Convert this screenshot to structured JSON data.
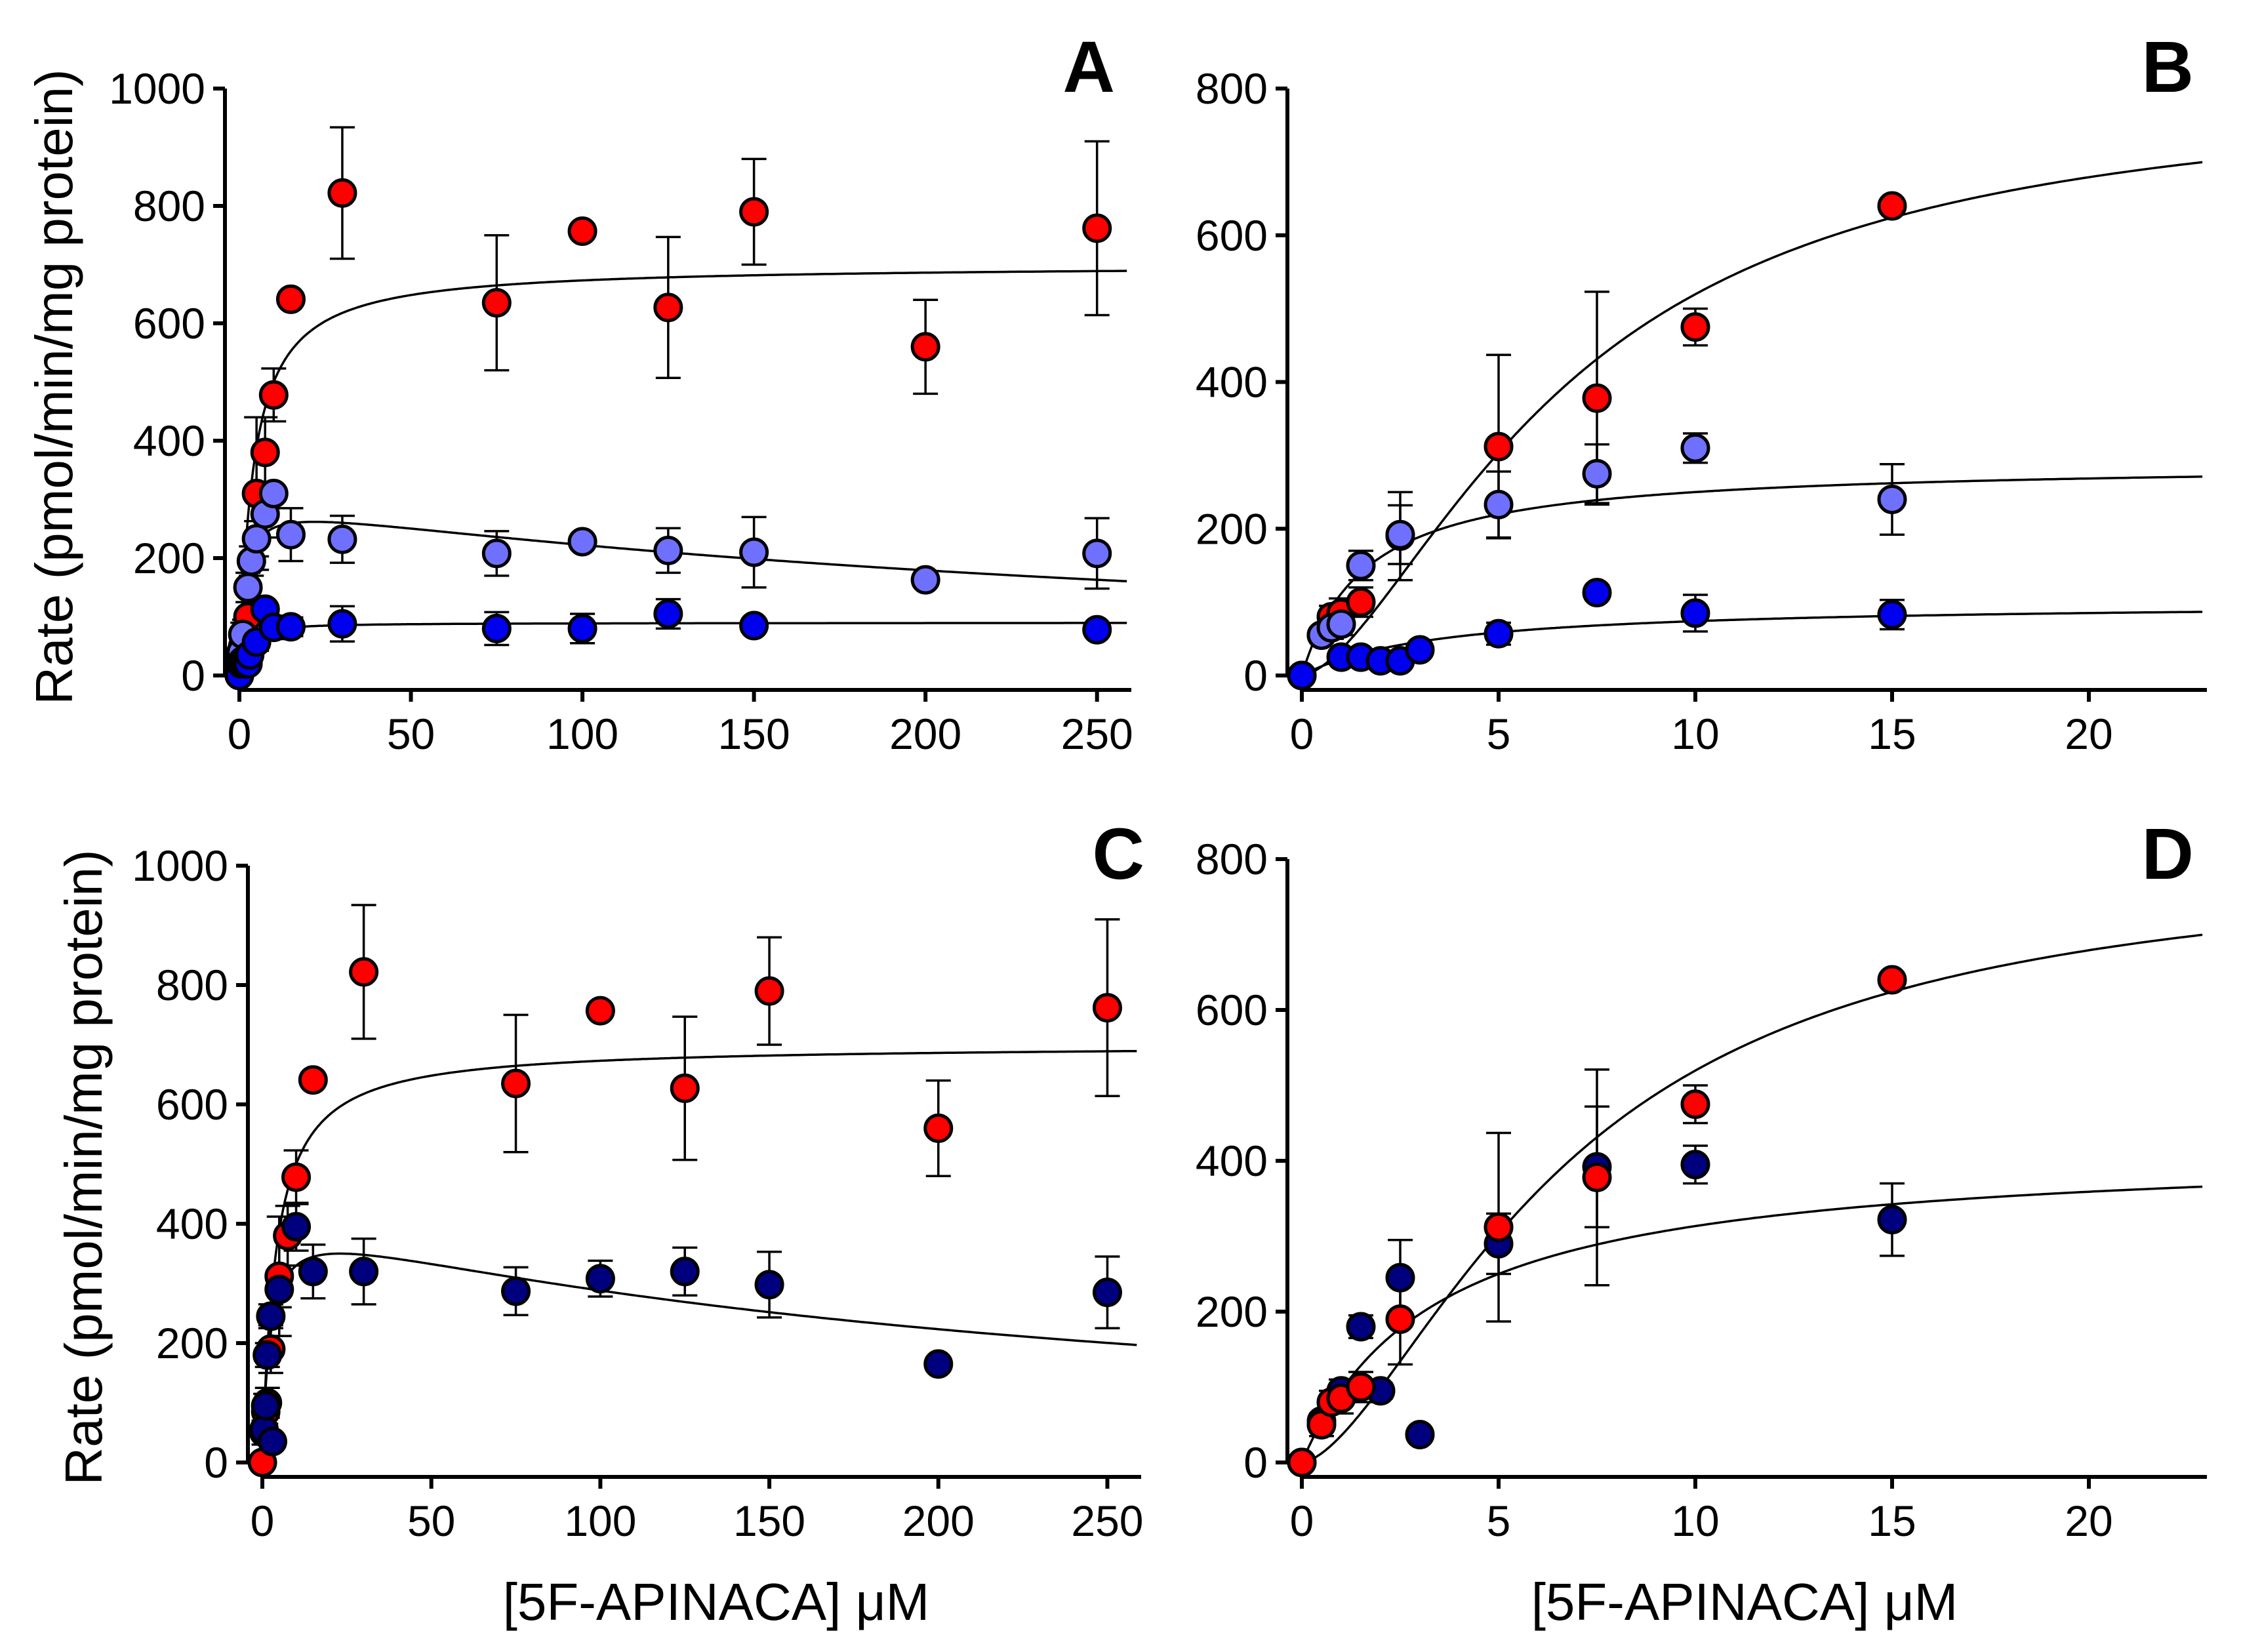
{
  "colors": {
    "red": "#ff0000",
    "light_blue": "#7070ff",
    "blue": "#0000ee",
    "navy": "#00007f",
    "black": "#000000"
  },
  "chart_data": [
    {
      "panel": "A",
      "type": "scatter",
      "xlabel": "",
      "ylabel": "Rate (pmol/min/mg protein)",
      "xlim": [
        0,
        260
      ],
      "ylim": [
        0,
        1000
      ],
      "xticks": [
        0,
        50,
        100,
        150,
        200,
        250
      ],
      "yticks": [
        0,
        200,
        400,
        600,
        800,
        1000
      ],
      "series": [
        {
          "name": "red",
          "color": "red",
          "points": [
            [
              0,
              0,
              0
            ],
            [
              0.5,
              30,
              15
            ],
            [
              1,
              50,
              20
            ],
            [
              1.5,
              70,
              25
            ],
            [
              2.5,
              100,
              40
            ],
            [
              5,
              310,
              130
            ],
            [
              7.5,
              380,
              60
            ],
            [
              10,
              478,
              45
            ],
            [
              15,
              641,
              0
            ],
            [
              30,
              822,
              112
            ],
            [
              75,
              635,
              115
            ],
            [
              100,
              757,
              0
            ],
            [
              125,
              627,
              120
            ],
            [
              150,
              790,
              90
            ],
            [
              200,
              560,
              80
            ],
            [
              250,
              762,
              148
            ]
          ],
          "fit": {
            "model": "mm",
            "vmax": 700,
            "km": 4
          }
        },
        {
          "name": "light_blue",
          "color": "light_blue",
          "points": [
            [
              0,
              0,
              0
            ],
            [
              0.5,
              40,
              15
            ],
            [
              1,
              70,
              20
            ],
            [
              2.5,
              150,
              25
            ],
            [
              3.5,
              195,
              25
            ],
            [
              5,
              233,
              30
            ],
            [
              7.5,
              275,
              40
            ],
            [
              10,
              310,
              0
            ],
            [
              15,
              240,
              45
            ],
            [
              30,
              232,
              40
            ],
            [
              75,
              208,
              38
            ],
            [
              100,
              228,
              0
            ],
            [
              125,
              213,
              38
            ],
            [
              150,
              210,
              60
            ],
            [
              200,
              163,
              0
            ],
            [
              250,
              208,
              60
            ]
          ],
          "fit": {
            "model": "si",
            "vmax": 300,
            "km": 1.6,
            "ki": 300
          }
        },
        {
          "name": "blue",
          "color": "blue",
          "points": [
            [
              0,
              0,
              0
            ],
            [
              0.5,
              20,
              0
            ],
            [
              1,
              25,
              8
            ],
            [
              1.5,
              25,
              6
            ],
            [
              2,
              20,
              6
            ],
            [
              2.5,
              20,
              5
            ],
            [
              3,
              35,
              8
            ],
            [
              5,
              57,
              15
            ],
            [
              7.5,
              113,
              10
            ],
            [
              10,
              82,
              20
            ],
            [
              15,
              83,
              16
            ],
            [
              30,
              88,
              30
            ],
            [
              75,
              80,
              28
            ],
            [
              100,
              80,
              25
            ],
            [
              125,
              105,
              25
            ],
            [
              150,
              85,
              0
            ],
            [
              250,
              78,
              0
            ]
          ],
          "fit": {
            "model": "mm",
            "vmax": 90,
            "km": 1.5
          }
        }
      ]
    },
    {
      "panel": "B",
      "type": "scatter",
      "xlabel": "",
      "ylabel": "",
      "xlim": [
        0,
        23
      ],
      "ylim": [
        0,
        800
      ],
      "xticks": [
        0,
        5,
        10,
        15,
        20
      ],
      "yticks": [
        0,
        200,
        400,
        600,
        800
      ],
      "series": [
        {
          "name": "red",
          "color": "red",
          "points": [
            [
              0,
              0,
              0
            ],
            [
              0.5,
              55,
              0
            ],
            [
              0.75,
              80,
              15
            ],
            [
              1,
              85,
              20
            ],
            [
              1.5,
              100,
              20
            ],
            [
              2.5,
              190,
              60
            ],
            [
              5,
              312,
              125
            ],
            [
              7.5,
              378,
              145
            ],
            [
              10,
              475,
              25
            ],
            [
              15,
              640,
              0
            ]
          ],
          "fit": {
            "model": "hill",
            "vmax": 800,
            "km": 6.8,
            "n": 1.6
          }
        },
        {
          "name": "light_blue",
          "color": "light_blue",
          "points": [
            [
              0,
              0,
              0
            ],
            [
              0.5,
              55,
              10
            ],
            [
              0.75,
              65,
              15
            ],
            [
              1,
              70,
              15
            ],
            [
              1.5,
              150,
              20
            ],
            [
              2.5,
              192,
              40
            ],
            [
              5,
              233,
              45
            ],
            [
              7.5,
              275,
              40
            ],
            [
              10,
              310,
              20
            ],
            [
              15,
              240,
              48
            ]
          ],
          "fit": {
            "model": "mm",
            "vmax": 290,
            "km": 1.6
          }
        },
        {
          "name": "blue",
          "color": "blue",
          "points": [
            [
              0,
              0,
              0
            ],
            [
              1,
              25,
              8
            ],
            [
              1.5,
              25,
              6
            ],
            [
              2,
              20,
              6
            ],
            [
              2.5,
              20,
              5
            ],
            [
              3,
              35,
              8
            ],
            [
              5,
              57,
              15
            ],
            [
              7.5,
              113,
              10
            ],
            [
              10,
              85,
              25
            ],
            [
              15,
              83,
              20
            ]
          ],
          "fit": {
            "model": "mm",
            "vmax": 100,
            "km": 3.5
          }
        }
      ]
    },
    {
      "panel": "C",
      "type": "scatter",
      "xlabel": "[5F-APINACA] μM",
      "ylabel": "Rate (pmol/min/mg protein)",
      "xlim": [
        0,
        260
      ],
      "ylim": [
        0,
        1000
      ],
      "xticks": [
        0,
        50,
        100,
        150,
        200,
        250
      ],
      "yticks": [
        0,
        200,
        400,
        600,
        800,
        1000
      ],
      "series": [
        {
          "name": "red",
          "color": "red",
          "points": [
            [
              0,
              0,
              0
            ],
            [
              0.5,
              50,
              20
            ],
            [
              1,
              85,
              20
            ],
            [
              1.5,
              100,
              25
            ],
            [
              2.5,
              190,
              40
            ],
            [
              5,
              312,
              100
            ],
            [
              7.5,
              380,
              50
            ],
            [
              10,
              478,
              45
            ],
            [
              15,
              641,
              0
            ],
            [
              30,
              822,
              112
            ],
            [
              75,
              635,
              115
            ],
            [
              100,
              757,
              0
            ],
            [
              125,
              627,
              120
            ],
            [
              150,
              790,
              90
            ],
            [
              200,
              560,
              80
            ],
            [
              250,
              762,
              148
            ]
          ],
          "fit": {
            "model": "mm",
            "vmax": 700,
            "km": 4
          }
        },
        {
          "name": "navy",
          "color": "navy",
          "points": [
            [
              0.5,
              55,
              15
            ],
            [
              1,
              95,
              20
            ],
            [
              1.5,
              180,
              20
            ],
            [
              2.5,
              245,
              20
            ],
            [
              3,
              35,
              8
            ],
            [
              5,
              290,
              30
            ],
            [
              10,
              395,
              40
            ],
            [
              15,
              320,
              45
            ],
            [
              30,
              320,
              55
            ],
            [
              75,
              287,
              40
            ],
            [
              100,
              308,
              30
            ],
            [
              125,
              320,
              40
            ],
            [
              150,
              298,
              55
            ],
            [
              200,
              165,
              0
            ],
            [
              250,
              285,
              60
            ]
          ],
          "fit": {
            "model": "si",
            "vmax": 420,
            "km": 2.3,
            "ki": 230
          }
        }
      ]
    },
    {
      "panel": "D",
      "type": "scatter",
      "xlabel": "[5F-APINACA] μM",
      "ylabel": "",
      "xlim": [
        0,
        23
      ],
      "ylim": [
        0,
        800
      ],
      "xticks": [
        0,
        5,
        10,
        15,
        20
      ],
      "yticks": [
        0,
        200,
        400,
        600,
        800
      ],
      "series": [
        {
          "name": "navy",
          "color": "navy",
          "points": [
            [
              0,
              0,
              0
            ],
            [
              0.5,
              55,
              10
            ],
            [
              1,
              95,
              15
            ],
            [
              1.5,
              180,
              15
            ],
            [
              2,
              95,
              10
            ],
            [
              2.5,
              245,
              50
            ],
            [
              3,
              37,
              8
            ],
            [
              5,
              290,
              40
            ],
            [
              7.5,
              392,
              80
            ],
            [
              10,
              395,
              25
            ],
            [
              15,
              322,
              48
            ]
          ],
          "fit": {
            "model": "mm",
            "vmax": 420,
            "km": 3.4
          }
        },
        {
          "name": "red",
          "color": "red",
          "points": [
            [
              0,
              0,
              0
            ],
            [
              0.5,
              50,
              15
            ],
            [
              0.75,
              80,
              15
            ],
            [
              1,
              85,
              20
            ],
            [
              1.5,
              100,
              20
            ],
            [
              2.5,
              190,
              60
            ],
            [
              5,
              312,
              125
            ],
            [
              7.5,
              378,
              143
            ],
            [
              10,
              475,
              25
            ],
            [
              15,
              640,
              0
            ]
          ],
          "fit": {
            "model": "hill",
            "vmax": 800,
            "km": 6.8,
            "n": 1.6
          }
        }
      ]
    }
  ]
}
